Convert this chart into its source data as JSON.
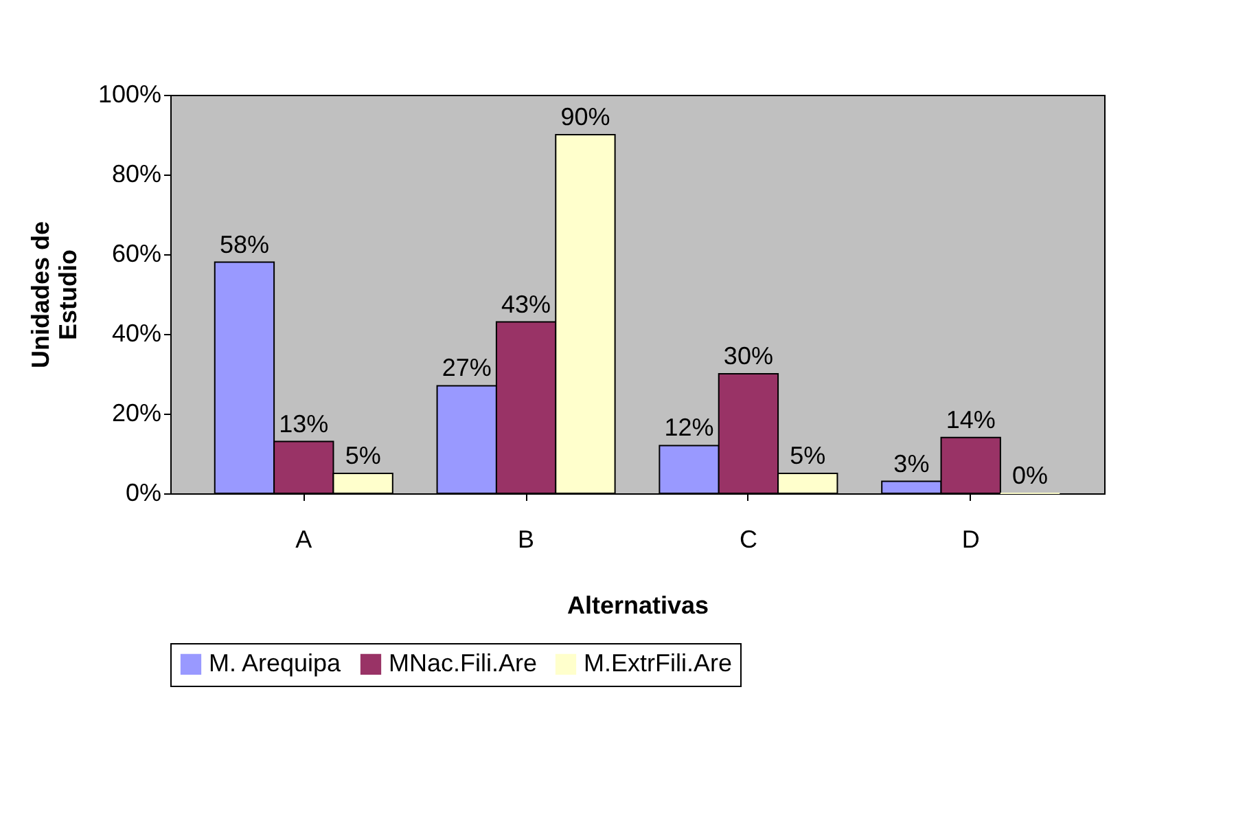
{
  "chart_data": {
    "type": "bar",
    "xlabel": "Alternativas",
    "ylabel": "Unidades de\nEstudio",
    "categories": [
      "A",
      "B",
      "C",
      "D"
    ],
    "series": [
      {
        "name": "M. Arequipa",
        "color": "#9999ff",
        "values": [
          58,
          27,
          12,
          3
        ],
        "value_labels": [
          "58%",
          "27%",
          "12%",
          "3%"
        ]
      },
      {
        "name": "MNac.Fili.Are",
        "color": "#993366",
        "values": [
          13,
          43,
          30,
          14
        ],
        "value_labels": [
          "13%",
          "43%",
          "30%",
          "14%"
        ]
      },
      {
        "name": "M.ExtrFili.Are",
        "color": "#ffffcc",
        "values": [
          5,
          90,
          5,
          0
        ],
        "value_labels": [
          "5%",
          "90%",
          "5%",
          "0%"
        ]
      }
    ],
    "ylim": [
      0,
      100
    ],
    "yticks": [
      {
        "value": 0,
        "label": "0%"
      },
      {
        "value": 20,
        "label": "20%"
      },
      {
        "value": 40,
        "label": "40%"
      },
      {
        "value": 60,
        "label": "60%"
      },
      {
        "value": 80,
        "label": "80%"
      },
      {
        "value": 100,
        "label": "100%"
      }
    ],
    "grid": false,
    "legend": "bottom"
  }
}
